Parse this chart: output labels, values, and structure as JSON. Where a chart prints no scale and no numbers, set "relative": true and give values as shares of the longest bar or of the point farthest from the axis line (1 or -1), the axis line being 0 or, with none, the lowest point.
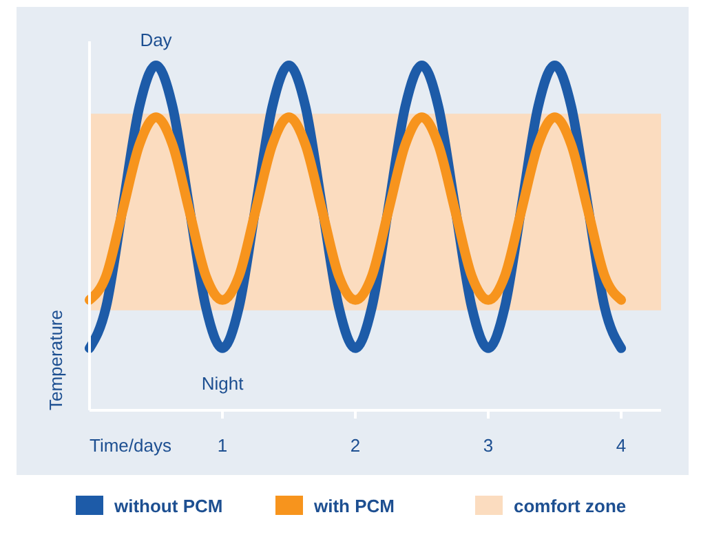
{
  "chart_data": {
    "type": "line",
    "relative": true,
    "xlabel": "Time/days",
    "ylabel": "Temperature",
    "x": [
      0,
      0.125,
      0.25,
      0.375,
      0.5,
      0.625,
      0.75,
      0.875,
      1,
      1.125,
      1.25,
      1.375,
      1.5,
      1.625,
      1.75,
      1.875,
      2,
      2.125,
      2.25,
      2.375,
      2.5,
      2.625,
      2.75,
      2.875,
      3,
      3.125,
      3.25,
      3.375,
      3.5,
      3.625,
      3.75,
      3.875,
      4
    ],
    "xlim": [
      0,
      4.3
    ],
    "xticks": [
      1,
      2,
      3,
      4
    ],
    "series": [
      {
        "name": "without PCM",
        "color": "#1d5ba8",
        "values": [
          0.18,
          0.3,
          0.59,
          0.88,
          1,
          0.88,
          0.59,
          0.3,
          0.18,
          0.3,
          0.59,
          0.88,
          1,
          0.88,
          0.59,
          0.3,
          0.18,
          0.3,
          0.59,
          0.88,
          1,
          0.88,
          0.59,
          0.3,
          0.18,
          0.3,
          0.59,
          0.88,
          1,
          0.88,
          0.59,
          0.3,
          0.18
        ]
      },
      {
        "name": "with PCM",
        "color": "#f7941d",
        "values": [
          0.32,
          0.39,
          0.58,
          0.77,
          0.85,
          0.77,
          0.58,
          0.39,
          0.32,
          0.39,
          0.58,
          0.77,
          0.85,
          0.77,
          0.58,
          0.39,
          0.32,
          0.39,
          0.58,
          0.77,
          0.85,
          0.77,
          0.58,
          0.39,
          0.32,
          0.39,
          0.58,
          0.77,
          0.85,
          0.77,
          0.58,
          0.39,
          0.32
        ]
      }
    ],
    "bands": [
      {
        "axis": "y",
        "from": 0.29,
        "to": 0.86,
        "label": "comfort zone",
        "color": "#fbdcbf"
      }
    ],
    "annotations": [
      {
        "text": "Day",
        "x": 0.5,
        "y": 1
      },
      {
        "text": "Night",
        "x": 1,
        "y": 0.18
      }
    ],
    "legend": "bottom",
    "line_style": "solid",
    "marker": "none"
  }
}
